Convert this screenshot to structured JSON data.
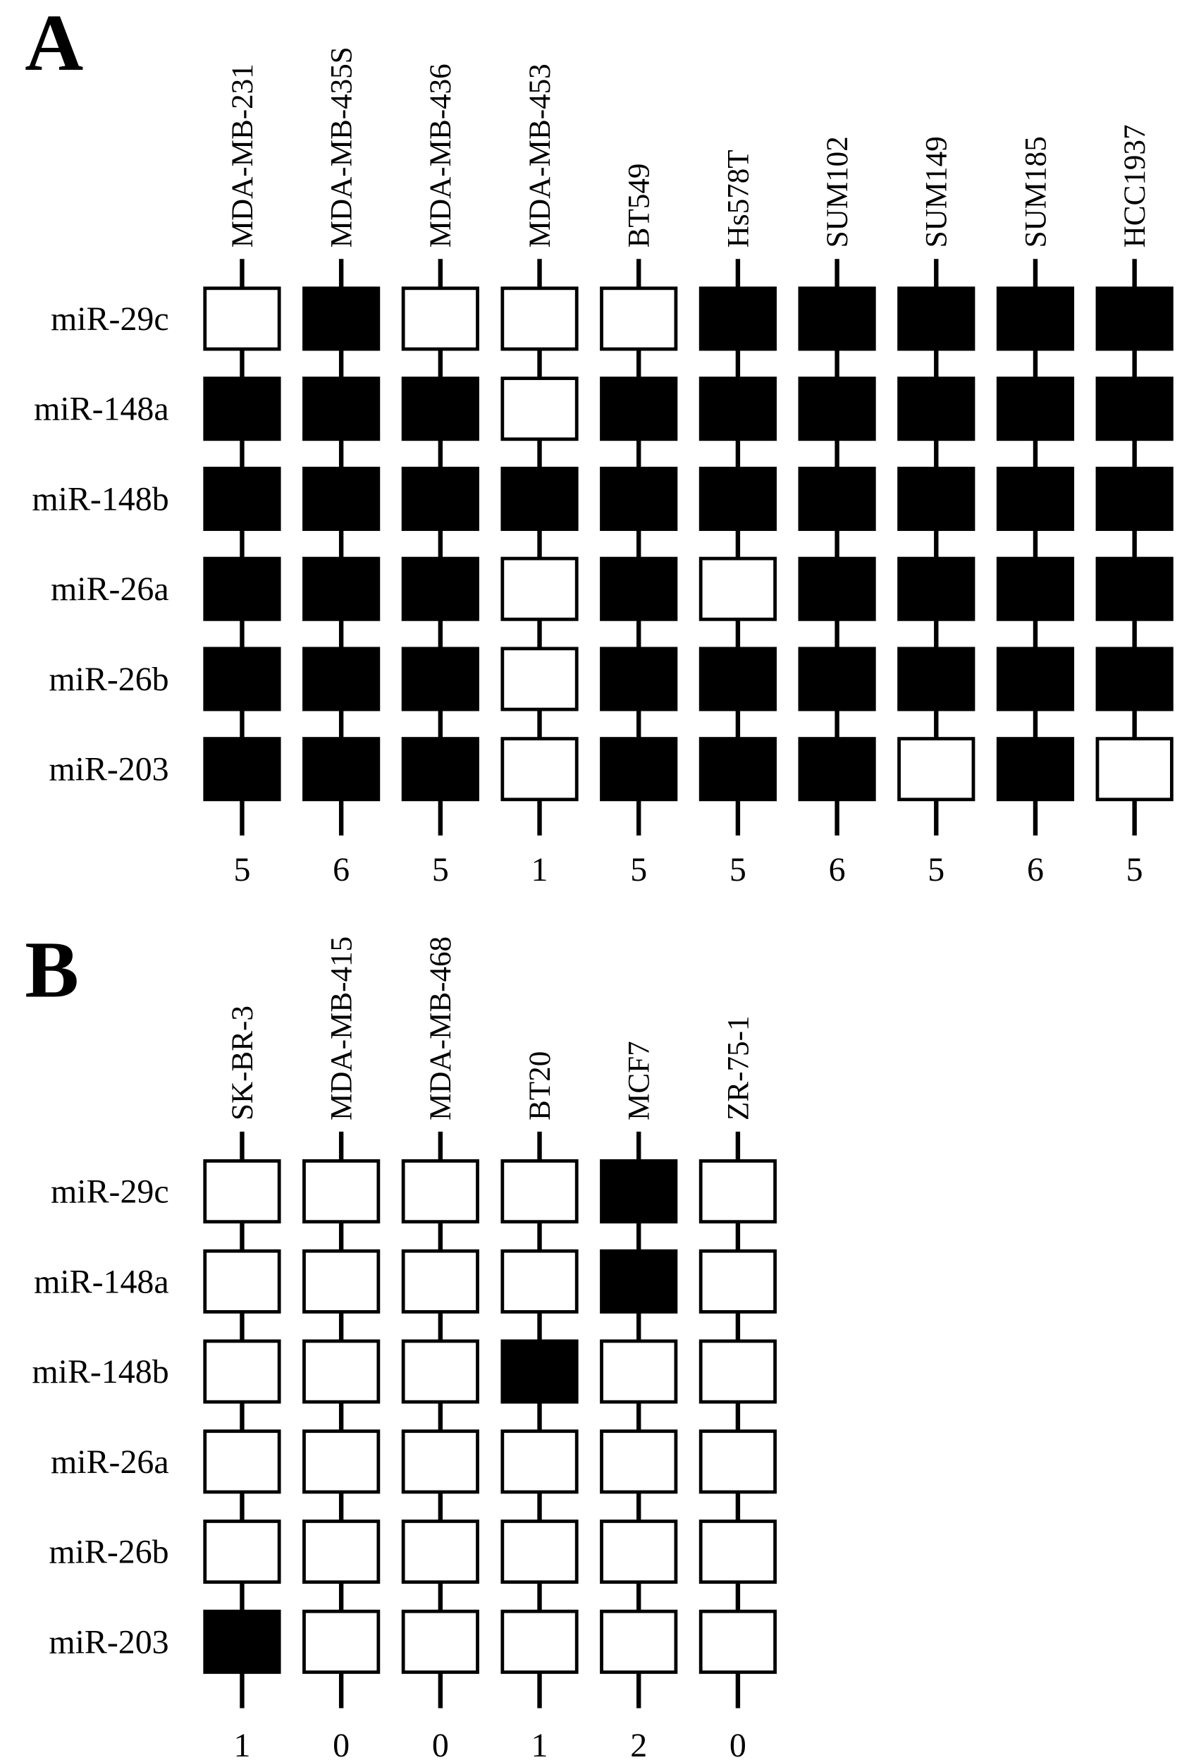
{
  "panels": [
    {
      "label": "A",
      "columns": [
        "MDA-MB-231",
        "MDA-MB-435S",
        "MDA-MB-436",
        "MDA-MB-453",
        "BT549",
        "Hs578T",
        "SUM102",
        "SUM149",
        "SUM185",
        "HCC1937"
      ],
      "rows": [
        "miR-29c",
        "miR-148a",
        "miR-148b",
        "miR-26a",
        "miR-26b",
        "miR-203"
      ],
      "cells": [
        [
          false,
          true,
          false,
          false,
          false,
          true,
          true,
          true,
          true,
          true
        ],
        [
          true,
          true,
          true,
          false,
          true,
          true,
          true,
          true,
          true,
          true
        ],
        [
          true,
          true,
          true,
          true,
          true,
          true,
          true,
          true,
          true,
          true
        ],
        [
          true,
          true,
          true,
          false,
          true,
          false,
          true,
          true,
          true,
          true
        ],
        [
          true,
          true,
          true,
          false,
          true,
          true,
          true,
          true,
          true,
          true
        ],
        [
          true,
          true,
          true,
          false,
          true,
          true,
          true,
          false,
          true,
          false
        ]
      ],
      "counts": [
        5,
        6,
        5,
        1,
        5,
        5,
        6,
        5,
        6,
        5
      ]
    },
    {
      "label": "B",
      "columns": [
        "SK-BR-3",
        "MDA-MB-415",
        "MDA-MB-468",
        "BT20",
        "MCF7",
        "ZR-75-1"
      ],
      "rows": [
        "miR-29c",
        "miR-148a",
        "miR-148b",
        "miR-26a",
        "miR-26b",
        "miR-203"
      ],
      "cells": [
        [
          false,
          false,
          false,
          false,
          true,
          false
        ],
        [
          false,
          false,
          false,
          false,
          true,
          false
        ],
        [
          false,
          false,
          false,
          true,
          false,
          false
        ],
        [
          false,
          false,
          false,
          false,
          false,
          false
        ],
        [
          false,
          false,
          false,
          false,
          false,
          false
        ],
        [
          true,
          false,
          false,
          false,
          false,
          false
        ]
      ],
      "counts": [
        1,
        0,
        0,
        1,
        2,
        0
      ]
    }
  ]
}
